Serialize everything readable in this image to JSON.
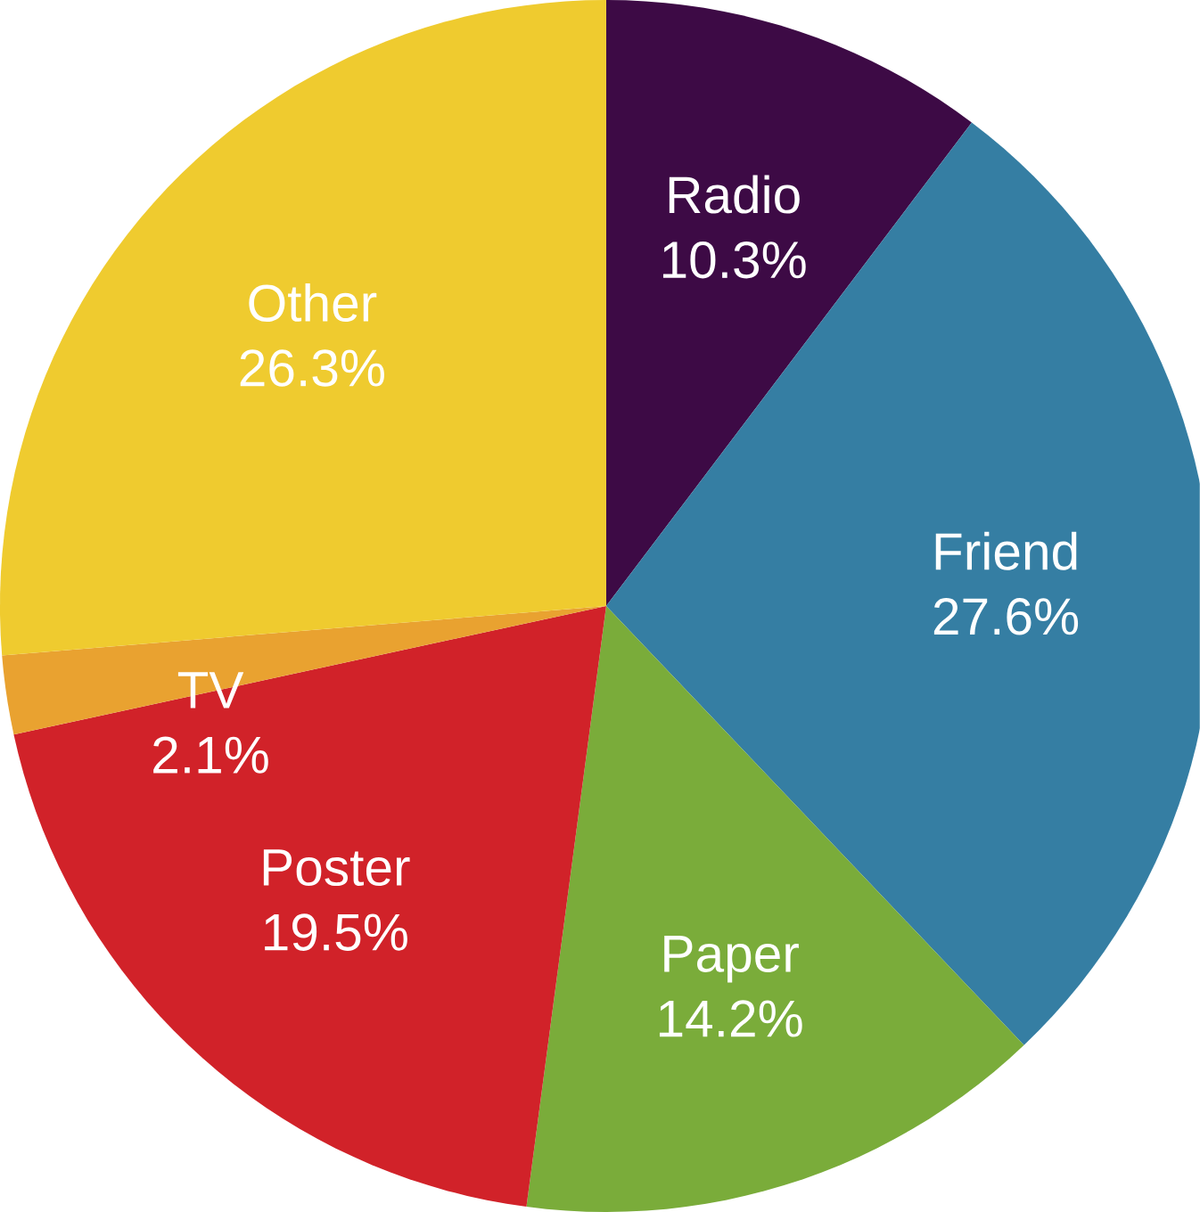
{
  "chart_data": {
    "type": "pie",
    "categories": [
      "Radio",
      "Friend",
      "Paper",
      "Poster",
      "TV",
      "Other"
    ],
    "values": [
      10.3,
      27.6,
      14.2,
      19.5,
      2.1,
      26.3
    ],
    "value_labels": [
      "10.3%",
      "27.6%",
      "14.2%",
      "19.5%",
      "2.1%",
      "26.3%"
    ],
    "colors": [
      "#3d0a45",
      "#357ea3",
      "#7aac3a",
      "#d12229",
      "#e9a230",
      "#efcb2f"
    ]
  }
}
